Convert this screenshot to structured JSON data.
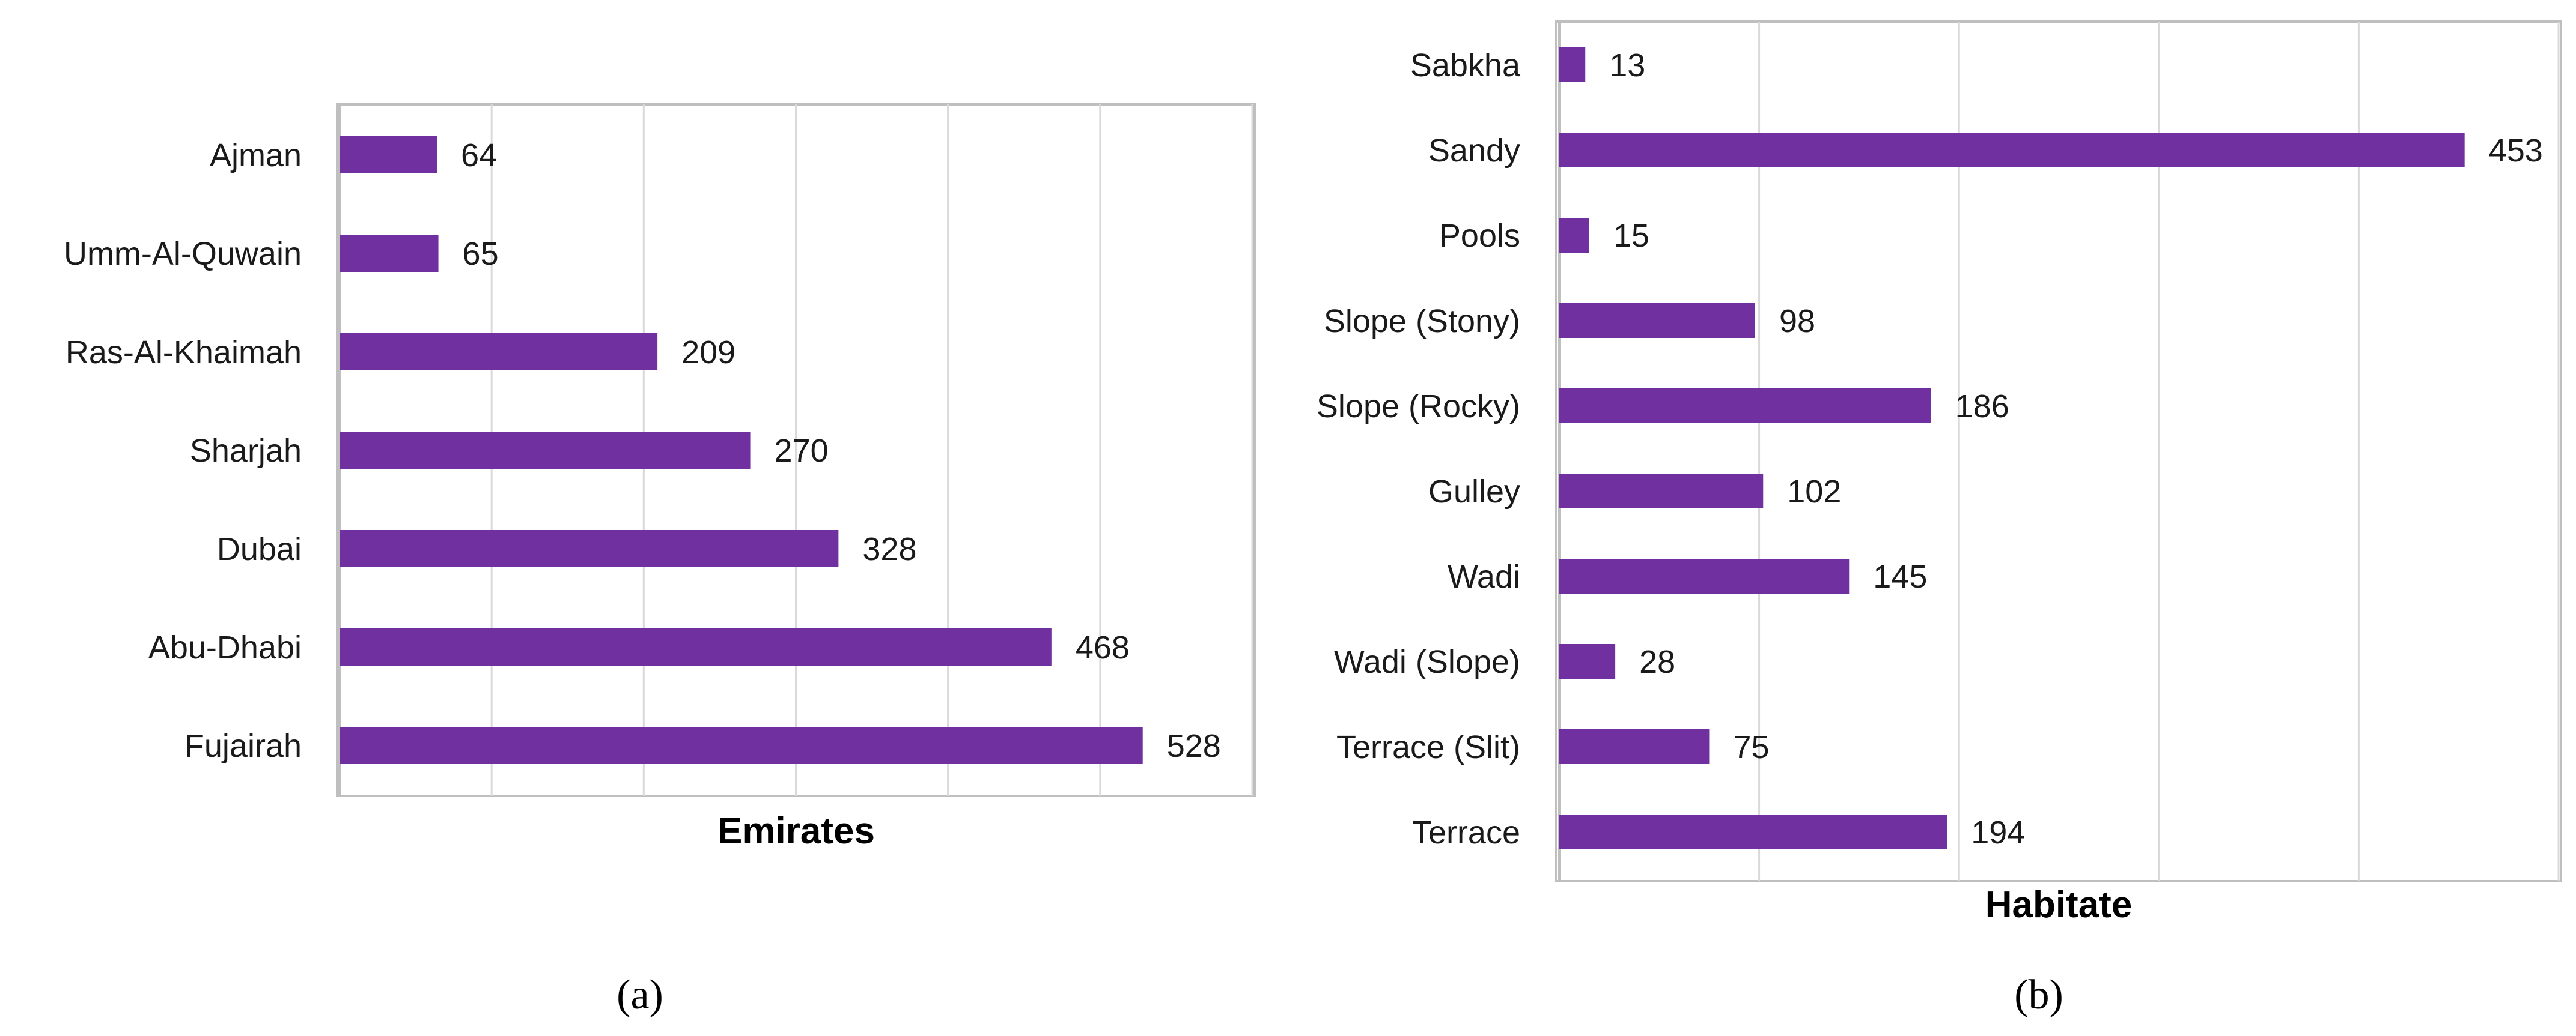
{
  "chart_data": [
    {
      "type": "bar",
      "orientation": "horizontal",
      "categories": [
        "Ajman",
        "Umm-Al-Quwain",
        "Ras-Al-Khaimah",
        "Sharjah",
        "Dubai",
        "Abu-Dhabi",
        "Fujairah"
      ],
      "values": [
        64,
        65,
        209,
        270,
        328,
        468,
        528
      ],
      "xlabel": "Emirates",
      "xlim": [
        0,
        600
      ],
      "grid": true,
      "color": "#7030a0",
      "data_labels": true,
      "caption": "(a)"
    },
    {
      "type": "bar",
      "orientation": "horizontal",
      "categories": [
        "Sabkha",
        "Sandy",
        "Pools",
        "Slope (Stony)",
        "Slope (Rocky)",
        "Gulley",
        "Wadi",
        "Wadi (Slope)",
        "Terrace (Slit)",
        "Terrace"
      ],
      "values": [
        13,
        453,
        15,
        98,
        186,
        102,
        145,
        28,
        75,
        194
      ],
      "xlabel": "Habitate",
      "xlim": [
        0,
        500
      ],
      "grid": true,
      "color": "#7030a0",
      "data_labels": true,
      "caption": "(b)"
    }
  ]
}
